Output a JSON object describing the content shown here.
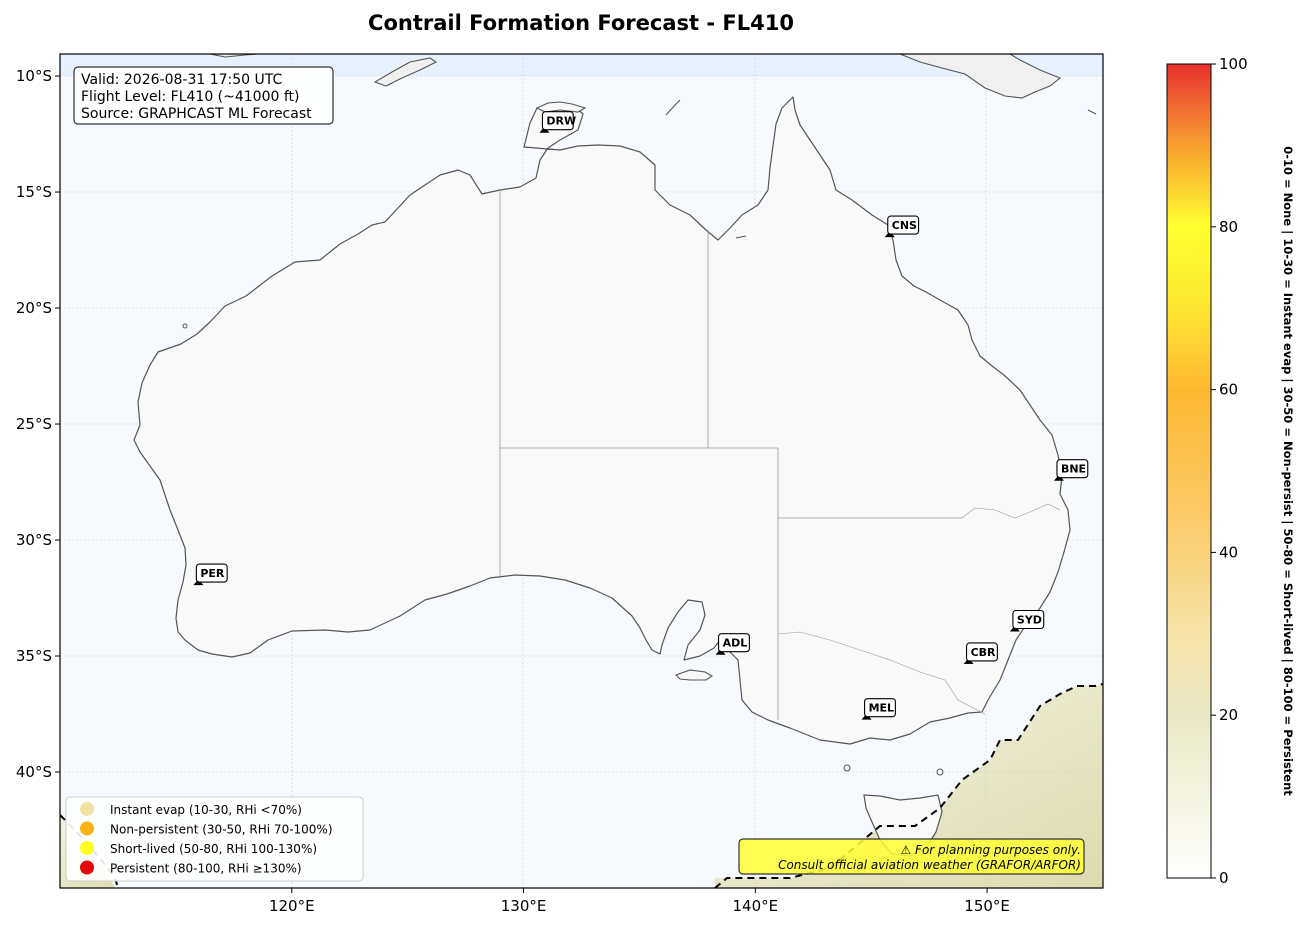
{
  "title": "Contrail Formation Forecast - FL410",
  "info_box": {
    "line1": "Valid: 2026-08-31 17:50 UTC",
    "line2": "Flight Level: FL410 (~41000 ft)",
    "line3": "Source: GRAPHCAST ML Forecast"
  },
  "axes": {
    "lat_ticks": [
      "10°S",
      "15°S",
      "20°S",
      "25°S",
      "30°S",
      "35°S",
      "40°S"
    ],
    "lon_ticks": [
      "120°E",
      "130°E",
      "140°E",
      "150°E"
    ]
  },
  "airports": [
    {
      "code": "DRW",
      "lon": 130.9,
      "lat": -12.4
    },
    {
      "code": "CNS",
      "lon": 145.8,
      "lat": -16.9
    },
    {
      "code": "BNE",
      "lon": 153.1,
      "lat": -27.4
    },
    {
      "code": "PER",
      "lon": 115.97,
      "lat": -31.9
    },
    {
      "code": "SYD",
      "lon": 151.2,
      "lat": -33.9
    },
    {
      "code": "ADL",
      "lon": 138.5,
      "lat": -34.9
    },
    {
      "code": "CBR",
      "lon": 149.2,
      "lat": -35.3
    },
    {
      "code": "MEL",
      "lon": 144.8,
      "lat": -37.7
    }
  ],
  "legend": {
    "items": [
      {
        "label": "Instant evap (10-30, RHi <70%)",
        "color": "#f0e2a2"
      },
      {
        "label": "Non-persistent (30-50, RHi 70-100%)",
        "color": "#fbb316"
      },
      {
        "label": "Short-lived (50-80, RHi 100-130%)",
        "color": "#ffff20"
      },
      {
        "label": "Persistent (80-100, RHi ≥130%)",
        "color": "#e40a0a"
      }
    ]
  },
  "warning": {
    "line1": "⚠ For planning purposes only.",
    "line2": "Consult official aviation weather (GRAFOR/ARFOR)"
  },
  "colorbar": {
    "ticks": [
      "0",
      "20",
      "40",
      "60",
      "80",
      "100"
    ],
    "label": "0-10 = None  |  10-30 = Instant evap  |  30-50 = Non-persist  |  50-80 = Short-lived  |  80-100 = Persistent"
  },
  "colors": {
    "ocean": "#f6fafe",
    "land": "#f9f9f9",
    "coast": "#555555",
    "contour": "#000000",
    "field_low": "#f2f2dd",
    "field_high": "#dedcaa"
  }
}
